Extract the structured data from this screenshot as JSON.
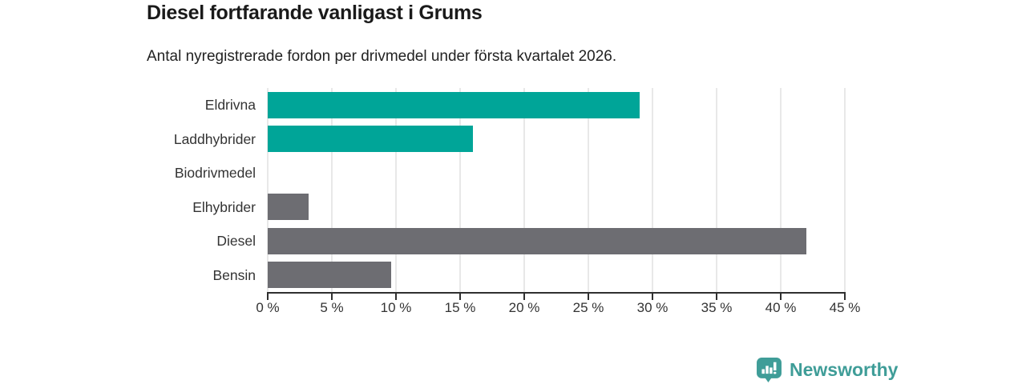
{
  "header": {
    "title": "Diesel fortfarande vanligast i Grums",
    "subtitle": "Antal nyregistrerade fordon per drivmedel under första kvartalet 2026."
  },
  "chart_data": {
    "type": "bar",
    "orientation": "horizontal",
    "title": "Diesel fortfarande vanligast i Grums",
    "subtitle": "Antal nyregistrerade fordon per drivmedel under första kvartalet 2026.",
    "categories": [
      "Eldrivna",
      "Laddhybrider",
      "Biodrivmedel",
      "Elhybrider",
      "Diesel",
      "Bensin"
    ],
    "values": [
      29,
      16,
      0,
      3.2,
      42,
      9.6
    ],
    "unit": "%",
    "bar_colors": [
      "#00a598",
      "#00a598",
      "#6d6d72",
      "#6d6d72",
      "#6d6d72",
      "#6d6d72"
    ],
    "xlim": [
      0,
      45
    ],
    "x_ticks": [
      0,
      5,
      10,
      15,
      20,
      25,
      30,
      35,
      40,
      45
    ],
    "x_tick_labels": [
      "0 %",
      "5 %",
      "10 %",
      "15 %",
      "20 %",
      "25 %",
      "30 %",
      "35 %",
      "40 %",
      "45 %"
    ],
    "xlabel": "",
    "ylabel": "",
    "grid": true,
    "legend": "none"
  },
  "branding": {
    "logo_text": "Newsworthy",
    "logo_icon": "bar-chart-speech-bubble",
    "logo_color": "#3f9d98"
  },
  "colors": {
    "teal": "#00a598",
    "gray": "#6d6d72",
    "axis": "#2f2f2f",
    "gridline": "#e8e8e8",
    "text": "#333333",
    "title_text": "#1a1a1a",
    "background": "#ffffff"
  }
}
